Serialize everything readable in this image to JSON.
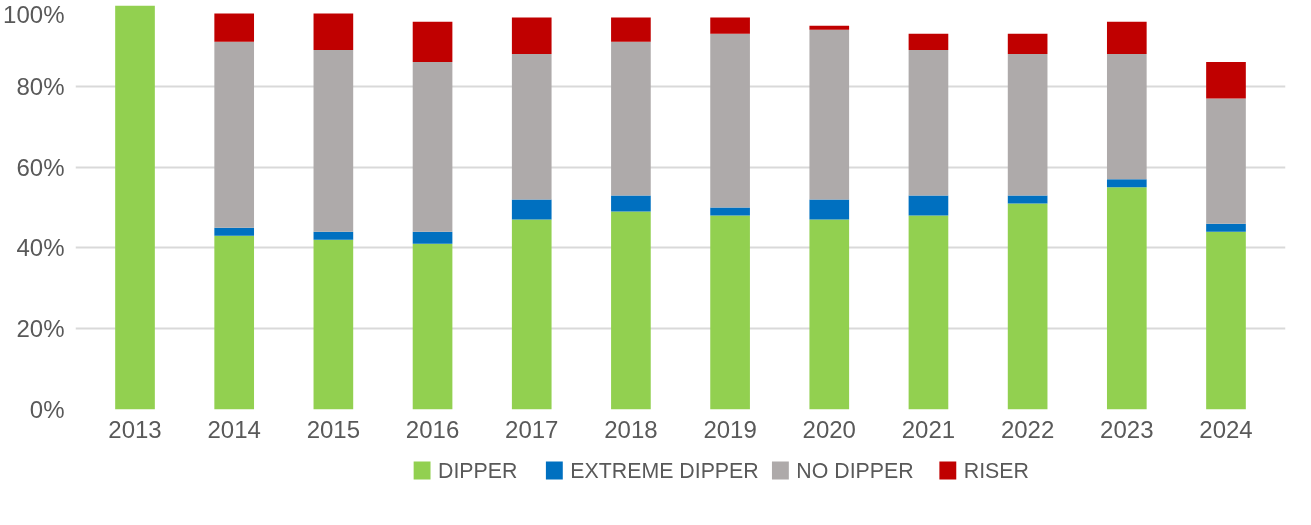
{
  "chart_data": {
    "type": "bar",
    "stacked": true,
    "categories": [
      "2013",
      "2014",
      "2015",
      "2016",
      "2017",
      "2018",
      "2019",
      "2020",
      "2021",
      "2022",
      "2023",
      "2024"
    ],
    "series": [
      {
        "name": "DIPPER",
        "color": "#92d050",
        "values": [
          100,
          43,
          42,
          41,
          47,
          49,
          48,
          47,
          48,
          51,
          55,
          44
        ]
      },
      {
        "name": "EXTREME DIPPER",
        "color": "#0070c0",
        "values": [
          0,
          2,
          2,
          3,
          5,
          4,
          2,
          5,
          5,
          2,
          2,
          2
        ]
      },
      {
        "name": "NO DIPPER",
        "color": "#aeaaaa",
        "values": [
          0,
          46,
          45,
          42,
          36,
          38,
          43,
          42,
          36,
          35,
          31,
          31
        ]
      },
      {
        "name": "RISER",
        "color": "#c00000",
        "values": [
          0,
          7,
          9,
          10,
          9,
          6,
          4,
          1,
          4,
          5,
          8,
          9
        ]
      }
    ],
    "ylim": [
      0,
      100
    ],
    "yticks": [
      {
        "value": 0,
        "label": "0%"
      },
      {
        "value": 20,
        "label": "20%"
      },
      {
        "value": 40,
        "label": "40%"
      },
      {
        "value": 60,
        "label": "60%"
      },
      {
        "value": 80,
        "label": "80%"
      },
      {
        "value": 100,
        "label": "100%"
      }
    ],
    "grid": "y",
    "legend": "bottom"
  }
}
